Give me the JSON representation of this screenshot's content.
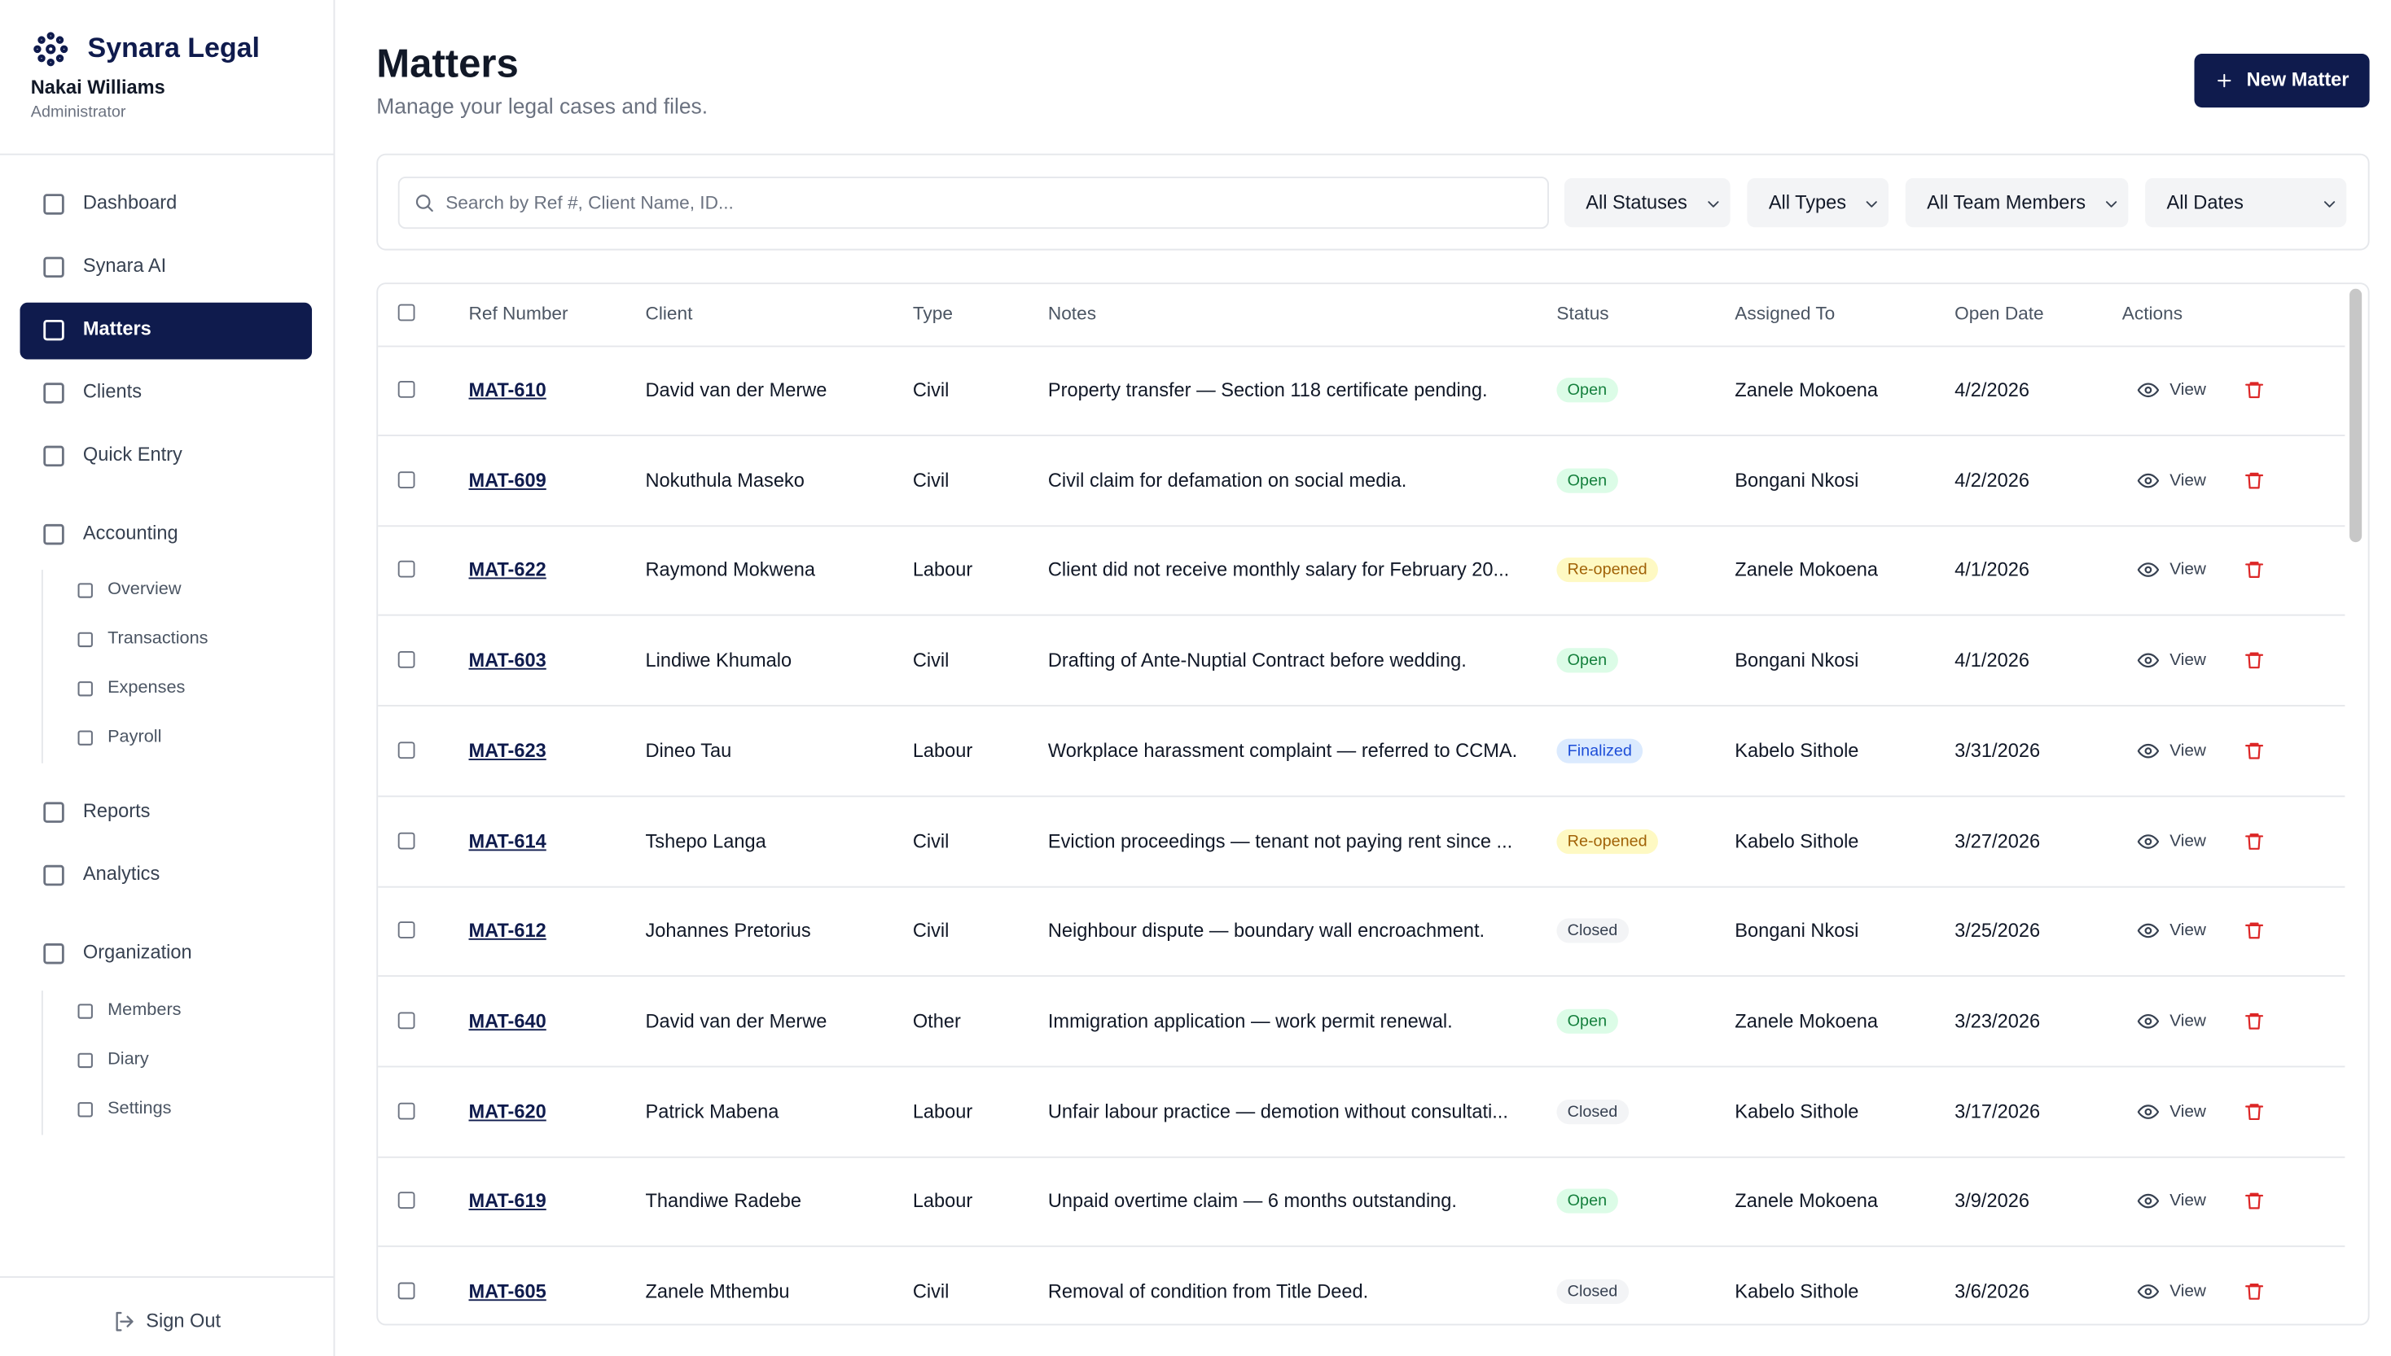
{
  "sidebar": {
    "brand": "Synara Legal",
    "user": {
      "name": "Nakai Williams",
      "role": "Administrator"
    },
    "nav": [
      {
        "label": "Dashboard"
      },
      {
        "label": "Synara AI"
      },
      {
        "label": "Matters"
      },
      {
        "label": "Clients"
      },
      {
        "label": "Quick Entry"
      },
      {
        "label": "Accounting",
        "sub": [
          "Overview",
          "Transactions",
          "Expenses",
          "Payroll"
        ]
      },
      {
        "label": "Reports"
      },
      {
        "label": "Analytics"
      },
      {
        "label": "Organization",
        "sub": [
          "Members",
          "Diary",
          "Settings"
        ]
      }
    ],
    "sign_out": "Sign Out"
  },
  "header": {
    "title": "Matters",
    "subtitle": "Manage your legal cases and files.",
    "button": "New Matter"
  },
  "filters": {
    "search_placeholder": "Search by Ref #, Client Name, ID...",
    "selects": [
      "All Statuses",
      "All Types",
      "All Team Members",
      "All Dates"
    ]
  },
  "table": {
    "columns": [
      "Ref Number",
      "Client",
      "Type",
      "Notes",
      "Status",
      "Assigned To",
      "Open Date",
      "Actions"
    ],
    "action_label": "View",
    "rows": [
      [
        "MAT-610",
        "David van der Merwe",
        "Civil",
        "Property transfer — Section 118 certificate pending.",
        "Open",
        "Zanele Mokoena",
        "4/2/2026"
      ],
      [
        "MAT-609",
        "Nokuthula Maseko",
        "Civil",
        "Civil claim for defamation on social media.",
        "Open",
        "Bongani Nkosi",
        "4/2/2026"
      ],
      [
        "MAT-622",
        "Raymond Mokwena",
        "Labour",
        "Client did not receive monthly salary for February 20...",
        "Re-opened",
        "Zanele Mokoena",
        "4/1/2026"
      ],
      [
        "MAT-603",
        "Lindiwe Khumalo",
        "Civil",
        "Drafting of Ante-Nuptial Contract before wedding.",
        "Open",
        "Bongani Nkosi",
        "4/1/2026"
      ],
      [
        "MAT-623",
        "Dineo Tau",
        "Labour",
        "Workplace harassment complaint — referred to CCMA.",
        "Finalized",
        "Kabelo Sithole",
        "3/31/2026"
      ],
      [
        "MAT-614",
        "Tshepo Langa",
        "Civil",
        "Eviction proceedings — tenant not paying rent since ...",
        "Re-opened",
        "Kabelo Sithole",
        "3/27/2026"
      ],
      [
        "MAT-612",
        "Johannes Pretorius",
        "Civil",
        "Neighbour dispute — boundary wall encroachment.",
        "Closed",
        "Bongani Nkosi",
        "3/25/2026"
      ],
      [
        "MAT-640",
        "David van der Merwe",
        "Other",
        "Immigration application — work permit renewal.",
        "Open",
        "Zanele Mokoena",
        "3/23/2026"
      ],
      [
        "MAT-620",
        "Patrick Mabena",
        "Labour",
        "Unfair labour practice — demotion without consultati...",
        "Closed",
        "Kabelo Sithole",
        "3/17/2026"
      ],
      [
        "MAT-619",
        "Thandiwe Radebe",
        "Labour",
        "Unpaid overtime claim — 6 months outstanding.",
        "Open",
        "Zanele Mokoena",
        "3/9/2026"
      ],
      [
        "MAT-605",
        "Zanele Mthembu",
        "Civil",
        "Removal of condition from Title Deed.",
        "Closed",
        "Kabelo Sithole",
        "3/6/2026"
      ]
    ]
  }
}
